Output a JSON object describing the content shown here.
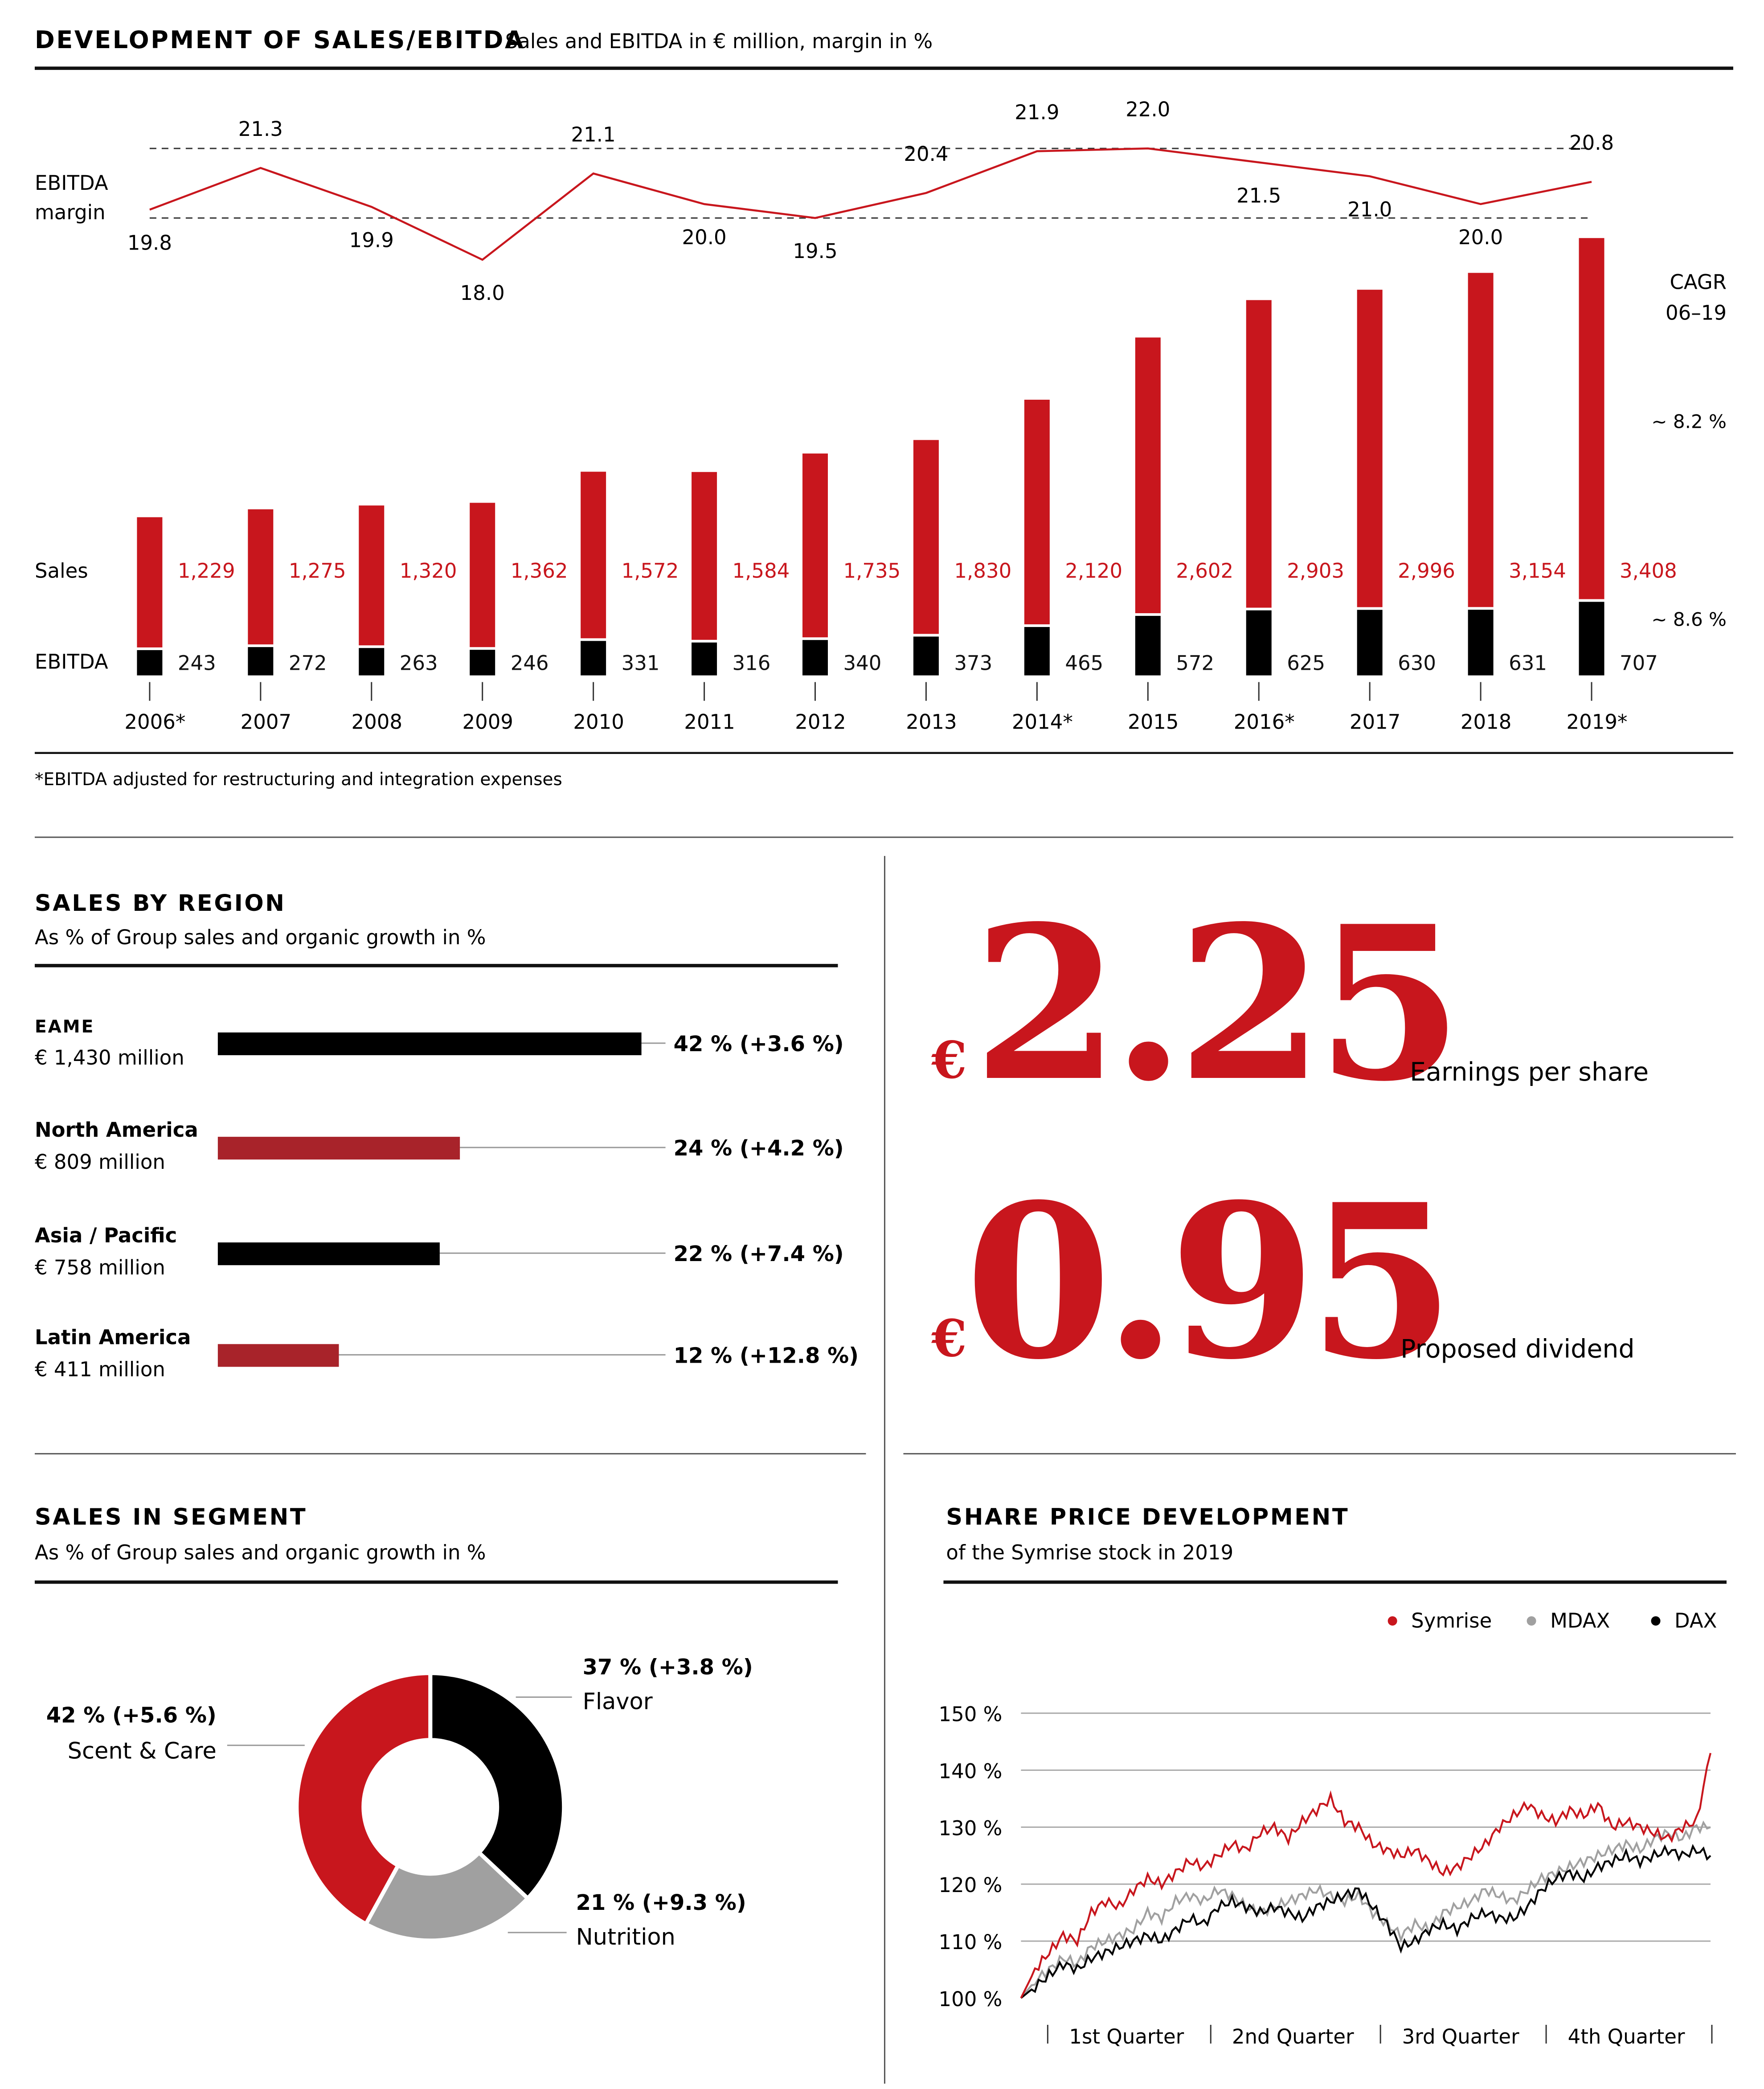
{
  "colors": {
    "red": "#c8161d",
    "dark_red": "#a8232a",
    "black": "#000000",
    "gray": "#a0a0a0",
    "rule": "#222222",
    "text": "#111111"
  },
  "sales_ebitda": {
    "title": "DEVELOPMENT OF SALES/EBITDA",
    "subtitle": "Sales and EBITDA in € million, margin in %",
    "margin_label_line1": "EBITDA",
    "margin_label_line2": "margin",
    "sales_label": "Sales",
    "ebitda_label": "EBITDA",
    "cagr_line1": "CAGR",
    "cagr_line2": "06–19",
    "cagr_sales": "~ 8.2 %",
    "cagr_ebitda": "~ 8.6 %",
    "footnote": "*EBITDA adjusted for restructuring and integration expenses"
  },
  "region": {
    "title": "SALES BY REGION",
    "subtitle": "As % of Group sales and organic growth in %",
    "items": [
      {
        "name": "EAME",
        "amount": "€ 1,430 million",
        "label": "42 % (+3.6 %)",
        "share": 42,
        "color": "#000000"
      },
      {
        "name": "North America",
        "amount": "€ 809 million",
        "label": "24 % (+4.2 %)",
        "share": 24,
        "color": "#a8232a"
      },
      {
        "name": "Asia / Pacific",
        "amount": "€ 758 million",
        "label": "22 % (+7.4 %)",
        "share": 22,
        "color": "#000000"
      },
      {
        "name": "Latin America",
        "amount": "€ 411 million",
        "label": "12 % (+12.8 %)",
        "share": 12,
        "color": "#a8232a"
      }
    ]
  },
  "kpis": {
    "eps_currency": "€",
    "eps_value": "2.25",
    "eps_label": "Earnings per share",
    "div_currency": "€",
    "div_value": "0.95",
    "div_label": "Proposed dividend"
  },
  "segment": {
    "title": "SALES IN SEGMENT",
    "subtitle": "As % of Group sales and organic growth in %",
    "slices": [
      {
        "name": "Flavor",
        "label": "37 % (+3.8 %)",
        "share": 37,
        "color": "#000000"
      },
      {
        "name": "Nutrition",
        "label": "21 % (+9.3 %)",
        "share": 21,
        "color": "#a0a0a0"
      },
      {
        "name": "Scent & Care",
        "label": "42 % (+5.6 %)",
        "share": 42,
        "color": "#c8161d"
      }
    ]
  },
  "share": {
    "title": "SHARE PRICE DEVELOPMENT",
    "subtitle": "of the Symrise stock in 2019",
    "legend": [
      {
        "name": "Symrise",
        "color": "#c8161d"
      },
      {
        "name": "MDAX",
        "color": "#a0a0a0"
      },
      {
        "name": "DAX",
        "color": "#000000"
      }
    ],
    "y_ticks": [
      "100 %",
      "110 %",
      "120 %",
      "130 %",
      "140 %",
      "150 %"
    ],
    "quarters": [
      "1st Quarter",
      "2nd Quarter",
      "3rd Quarter",
      "4th Quarter"
    ]
  },
  "chart_data": [
    {
      "type": "bar",
      "title": "DEVELOPMENT OF SALES/EBITDA",
      "categories": [
        "2006*",
        "2007",
        "2008",
        "2009",
        "2010",
        "2011",
        "2012",
        "2013",
        "2014*",
        "2015",
        "2016*",
        "2017",
        "2018",
        "2019*"
      ],
      "series": [
        {
          "name": "Sales",
          "values": [
            1229,
            1275,
            1320,
            1362,
            1572,
            1584,
            1735,
            1830,
            2120,
            2602,
            2903,
            2996,
            3154,
            3408
          ],
          "labels": [
            "1,229",
            "1,275",
            "1,320",
            "1,362",
            "1,572",
            "1,584",
            "1,735",
            "1,830",
            "2,120",
            "2,602",
            "2,903",
            "2,996",
            "3,154",
            "3,408"
          ]
        },
        {
          "name": "EBITDA",
          "values": [
            243,
            272,
            263,
            246,
            331,
            316,
            340,
            373,
            465,
            572,
            625,
            630,
            631,
            707
          ],
          "labels": [
            "243",
            "272",
            "263",
            "246",
            "331",
            "316",
            "340",
            "373",
            "465",
            "572",
            "625",
            "630",
            "631",
            "707"
          ]
        },
        {
          "name": "EBITDA margin",
          "type": "line",
          "values": [
            19.8,
            21.3,
            19.9,
            18.0,
            21.1,
            20.0,
            19.5,
            20.4,
            21.9,
            22.0,
            21.5,
            21.0,
            20.0,
            20.8
          ],
          "labels": [
            "19.8",
            "21.3",
            "19.9",
            "18.0",
            "21.1",
            "20.0",
            "19.5",
            "20.4",
            "21.9",
            "22.0",
            "21.5",
            "21.0",
            "20.0",
            "20.8"
          ]
        }
      ]
    },
    {
      "type": "bar",
      "title": "SALES BY REGION",
      "categories": [
        "EAME",
        "North America",
        "Asia / Pacific",
        "Latin America"
      ],
      "values": [
        42,
        24,
        22,
        12
      ],
      "growth": [
        3.6,
        4.2,
        7.4,
        12.8
      ],
      "sales_million": [
        1430,
        809,
        758,
        411
      ]
    },
    {
      "type": "pie",
      "title": "SALES IN SEGMENT",
      "categories": [
        "Flavor",
        "Nutrition",
        "Scent & Care"
      ],
      "values": [
        37,
        21,
        42
      ],
      "growth": [
        3.8,
        9.3,
        5.6
      ]
    },
    {
      "type": "line",
      "title": "SHARE PRICE DEVELOPMENT",
      "ylim": [
        100,
        150
      ],
      "ylabel": "",
      "x": [
        "1st Quarter",
        "2nd Quarter",
        "3rd Quarter",
        "4th Quarter"
      ],
      "series": [
        {
          "name": "Symrise",
          "points": [
            [
              0,
              100
            ],
            [
              2,
              105
            ],
            [
              4,
              108
            ],
            [
              6,
              111
            ],
            [
              8,
              110
            ],
            [
              10,
              115
            ],
            [
              12,
              117
            ],
            [
              14,
              116
            ],
            [
              16,
              119
            ],
            [
              18,
              121
            ],
            [
              20,
              120
            ],
            [
              22,
              122
            ],
            [
              24,
              124
            ],
            [
              26,
              123
            ],
            [
              28,
              125
            ],
            [
              30,
              127
            ],
            [
              32,
              126
            ],
            [
              34,
              129
            ],
            [
              36,
              130
            ],
            [
              38,
              128
            ],
            [
              40,
              131
            ],
            [
              42,
              133
            ],
            [
              44,
              135
            ],
            [
              46,
              131
            ],
            [
              48,
              130
            ],
            [
              50,
              127
            ],
            [
              52,
              126
            ],
            [
              54,
              125
            ],
            [
              56,
              126
            ],
            [
              58,
              124
            ],
            [
              60,
              122
            ],
            [
              62,
              123
            ],
            [
              64,
              125
            ],
            [
              66,
              127
            ],
            [
              68,
              130
            ],
            [
              70,
              132
            ],
            [
              72,
              134
            ],
            [
              74,
              132
            ],
            [
              76,
              131
            ],
            [
              78,
              133
            ],
            [
              80,
              132
            ],
            [
              82,
              134
            ],
            [
              84,
              130
            ],
            [
              86,
              131
            ],
            [
              88,
              130
            ],
            [
              90,
              129
            ],
            [
              92,
              128
            ],
            [
              94,
              130
            ],
            [
              96,
              131
            ],
            [
              98,
              143
            ]
          ]
        },
        {
          "name": "MDAX",
          "points": [
            [
              0,
              100
            ],
            [
              2,
              103
            ],
            [
              4,
              105
            ],
            [
              6,
              107
            ],
            [
              8,
              106
            ],
            [
              10,
              109
            ],
            [
              12,
              110
            ],
            [
              14,
              111
            ],
            [
              16,
              112
            ],
            [
              18,
              115
            ],
            [
              20,
              114
            ],
            [
              22,
              117
            ],
            [
              24,
              118
            ],
            [
              26,
              117
            ],
            [
              28,
              119
            ],
            [
              30,
              118
            ],
            [
              32,
              116
            ],
            [
              34,
              115
            ],
            [
              36,
              116
            ],
            [
              38,
              117
            ],
            [
              40,
              118
            ],
            [
              42,
              119
            ],
            [
              44,
              118
            ],
            [
              46,
              117
            ],
            [
              48,
              118
            ],
            [
              50,
              115
            ],
            [
              52,
              113
            ],
            [
              54,
              111
            ],
            [
              56,
              113
            ],
            [
              58,
              112
            ],
            [
              60,
              115
            ],
            [
              62,
              116
            ],
            [
              64,
              117
            ],
            [
              66,
              119
            ],
            [
              68,
              118
            ],
            [
              70,
              117
            ],
            [
              72,
              119
            ],
            [
              74,
              121
            ],
            [
              76,
              122
            ],
            [
              78,
              123
            ],
            [
              80,
              124
            ],
            [
              82,
              125
            ],
            [
              84,
              126
            ],
            [
              86,
              127
            ],
            [
              88,
              126
            ],
            [
              90,
              128
            ],
            [
              92,
              129
            ],
            [
              94,
              128
            ],
            [
              96,
              130
            ],
            [
              98,
              130
            ]
          ]
        },
        {
          "name": "DAX",
          "points": [
            [
              0,
              100
            ],
            [
              2,
              102
            ],
            [
              4,
              104
            ],
            [
              6,
              106
            ],
            [
              8,
              105
            ],
            [
              10,
              107
            ],
            [
              12,
              108
            ],
            [
              14,
              109
            ],
            [
              16,
              110
            ],
            [
              18,
              111
            ],
            [
              20,
              110
            ],
            [
              22,
              112
            ],
            [
              24,
              114
            ],
            [
              26,
              113
            ],
            [
              28,
              116
            ],
            [
              30,
              117
            ],
            [
              32,
              116
            ],
            [
              34,
              115
            ],
            [
              36,
              116
            ],
            [
              38,
              115
            ],
            [
              40,
              114
            ],
            [
              42,
              116
            ],
            [
              44,
              117
            ],
            [
              46,
              118
            ],
            [
              48,
              119
            ],
            [
              50,
              116
            ],
            [
              52,
              113
            ],
            [
              54,
              109
            ],
            [
              56,
              110
            ],
            [
              58,
              112
            ],
            [
              60,
              113
            ],
            [
              62,
              112
            ],
            [
              64,
              114
            ],
            [
              66,
              115
            ],
            [
              68,
              114
            ],
            [
              70,
              114
            ],
            [
              72,
              116
            ],
            [
              74,
              119
            ],
            [
              76,
              121
            ],
            [
              78,
              122
            ],
            [
              80,
              121
            ],
            [
              82,
              123
            ],
            [
              84,
              124
            ],
            [
              86,
              125
            ],
            [
              88,
              124
            ],
            [
              90,
              125
            ],
            [
              92,
              126
            ],
            [
              94,
              125
            ],
            [
              96,
              126
            ],
            [
              98,
              125
            ]
          ]
        }
      ]
    }
  ]
}
